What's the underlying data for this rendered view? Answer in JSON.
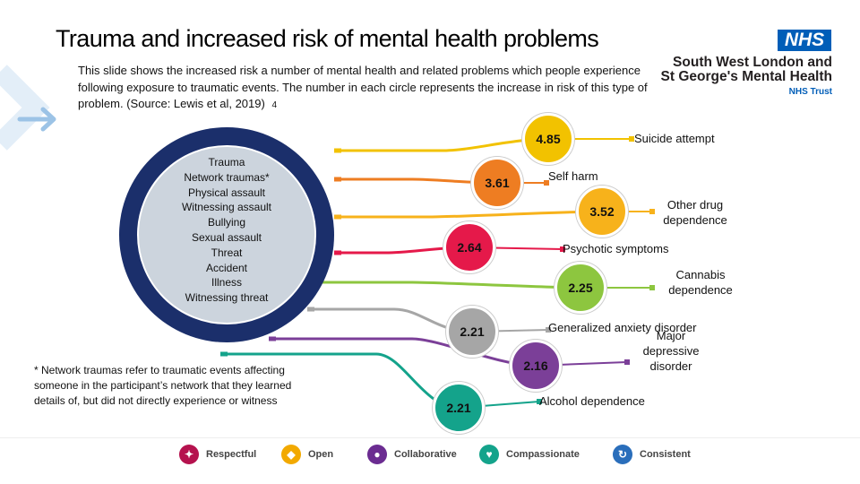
{
  "slide": {
    "title": "Trauma and increased risk of mental health problems",
    "intro": "This slide shows the increased risk a number of mental health and related problems which people experience following exposure to traumatic events. The number in each circle represents the increase in risk of this type of problem. (Source: Lewis et al, 2019)",
    "slide_number": "4"
  },
  "branding": {
    "nhs_badge": "NHS",
    "trust_name_line1": "South West London and",
    "trust_name_line2": "St George's Mental Health",
    "trust_suffix": "NHS Trust",
    "nhs_blue": "#005EB8"
  },
  "trauma": {
    "items": [
      "Trauma",
      "Network traumas*",
      "Physical assault",
      "Witnessing assault",
      "Bullying",
      "Sexual assault",
      "Threat",
      "Accident",
      "Illness",
      "Witnessing threat"
    ],
    "ring_color": "#1b2f6b",
    "fill_color": "#ccd4dd"
  },
  "footnote": "* Network traumas refer to traumatic events affecting someone in the participant’s network that they learned details of, but did not directly experience or witness",
  "outcomes": [
    {
      "value": "4.85",
      "label": "Suicide attempt",
      "color": "#f2c200"
    },
    {
      "value": "3.61",
      "label": "Self harm",
      "color": "#ee7d22"
    },
    {
      "value": "3.52",
      "label": "Other drug dependence",
      "color": "#f7b21b"
    },
    {
      "value": "2.64",
      "label": "Psychotic symptoms",
      "color": "#e5194a"
    },
    {
      "value": "2.25",
      "label": "Cannabis dependence",
      "color": "#8dc63f"
    },
    {
      "value": "2.21",
      "label": "Generalized anxiety disorder",
      "color": "#a6a6a6"
    },
    {
      "value": "2.16",
      "label": "Major depressive disorder",
      "color": "#7b3f98"
    },
    {
      "value": "2.21",
      "label": "Alcohol dependence",
      "color": "#14a38b"
    }
  ],
  "values_bar": [
    {
      "label": "Respectful",
      "icon": "handshake-icon",
      "color": "#b5124e"
    },
    {
      "label": "Open",
      "icon": "shield-icon",
      "color": "#f2a900"
    },
    {
      "label": "Collaborative",
      "icon": "people-icon",
      "color": "#6b2c91"
    },
    {
      "label": "Compassionate",
      "icon": "heart-hands-icon",
      "color": "#14a38b"
    },
    {
      "label": "Consistent",
      "icon": "cycle-icon",
      "color": "#2a6ebb"
    }
  ]
}
